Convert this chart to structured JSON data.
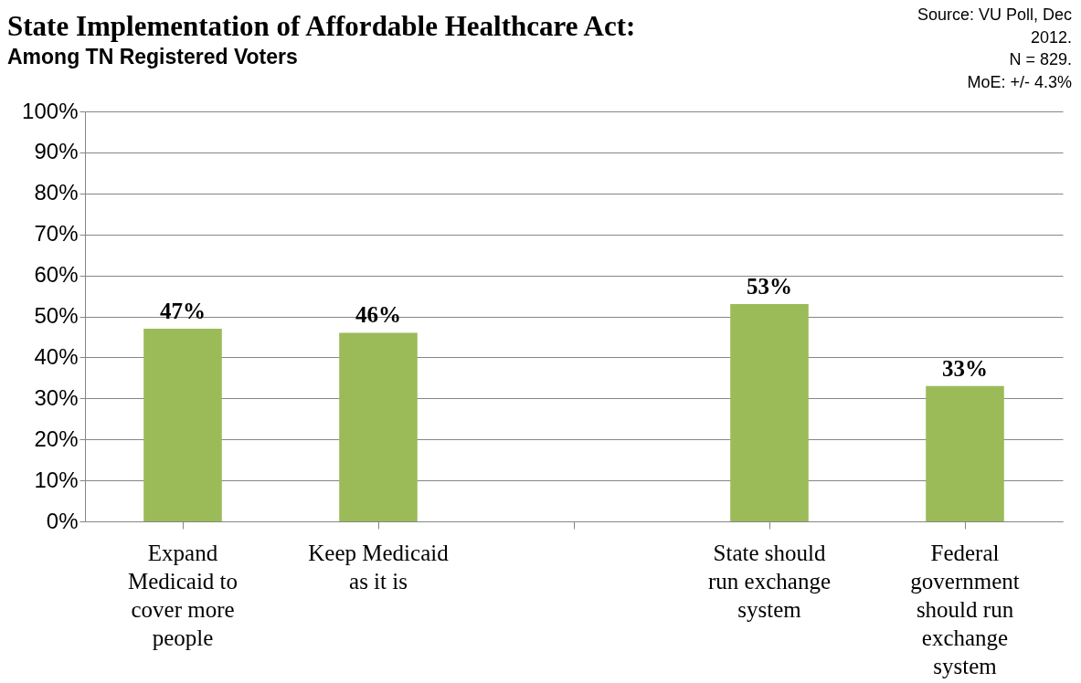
{
  "chart_data": {
    "type": "bar",
    "title": "State Implementation of Affordable Healthcare Act:",
    "subtitle": "Among TN Registered Voters",
    "categories": [
      "Expand Medicaid to cover more people",
      "Keep Medicaid as it is",
      null,
      "State should run exchange system",
      "Federal government should run exchange system"
    ],
    "values": [
      47,
      46,
      null,
      53,
      33
    ],
    "color": "#9bbb59",
    "ylim": [
      0,
      100
    ],
    "yticks": [
      {
        "value": 0,
        "label": "0%"
      },
      {
        "value": 10,
        "label": "10%"
      },
      {
        "value": 20,
        "label": "20%"
      },
      {
        "value": 30,
        "label": "30%"
      },
      {
        "value": 40,
        "label": "40%"
      },
      {
        "value": 50,
        "label": "50%"
      },
      {
        "value": 60,
        "label": "60%"
      },
      {
        "value": 70,
        "label": "70%"
      },
      {
        "value": 80,
        "label": "80%"
      },
      {
        "value": 90,
        "label": "90%"
      },
      {
        "value": 100,
        "label": "100%"
      }
    ],
    "grid": "y",
    "value_labels": [
      "47%",
      "46%",
      null,
      "53%",
      "33%"
    ],
    "annotations": [
      "Source: VU Poll, Dec 2012.",
      "N = 829.",
      "MoE: +/- 4.3%"
    ]
  }
}
